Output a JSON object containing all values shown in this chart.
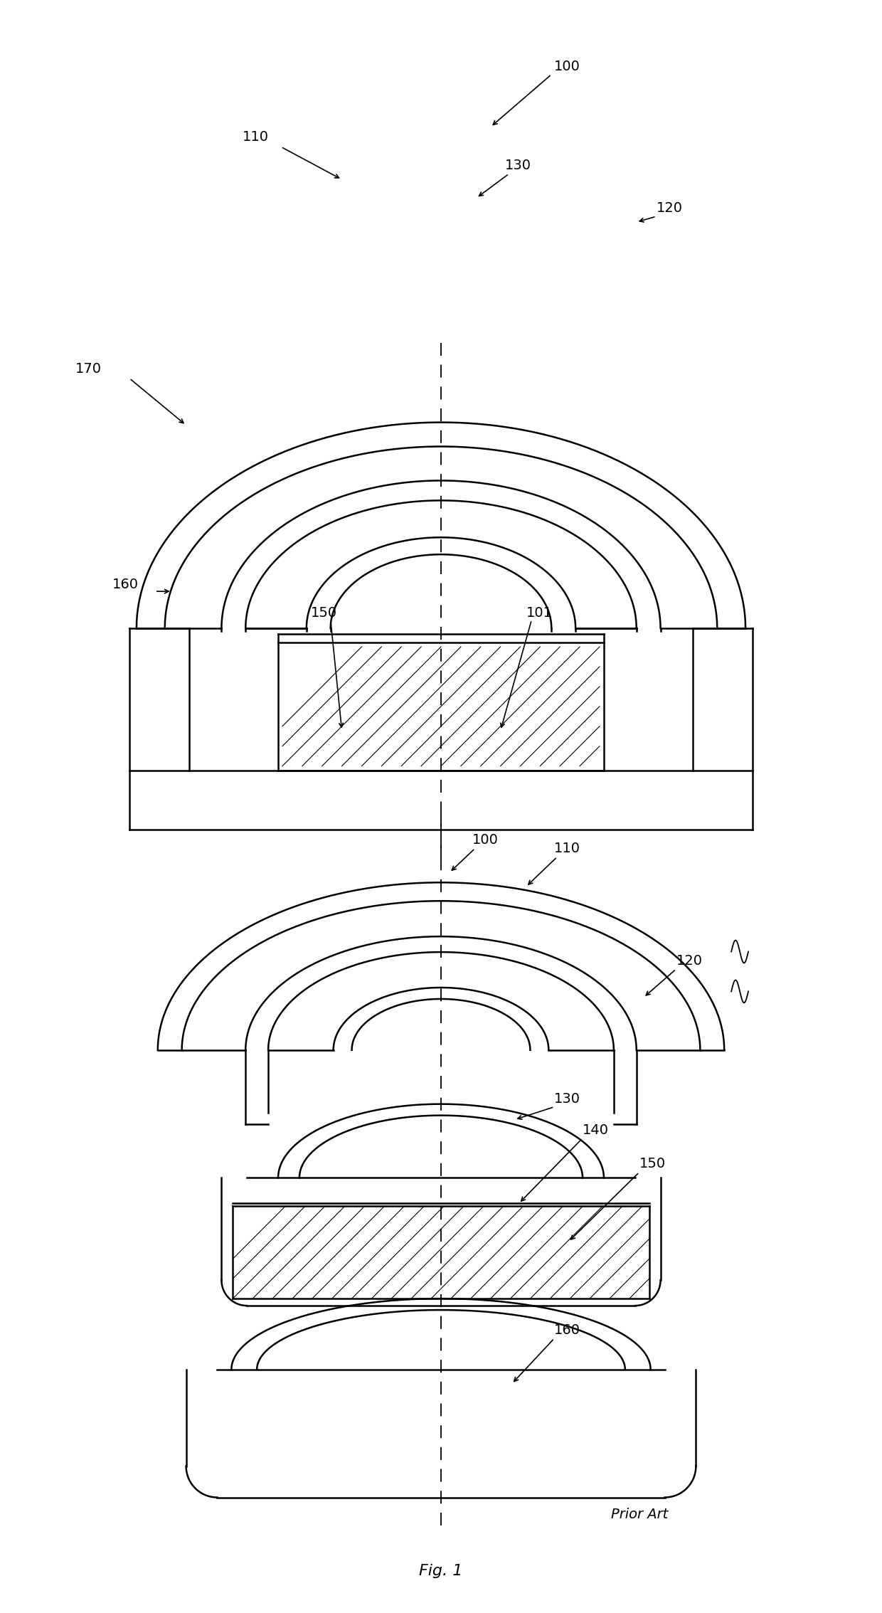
{
  "bg_color": "#ffffff",
  "line_color": "#000000",
  "fig_width": 12.4,
  "fig_height": 22.67,
  "dpi": 100,
  "fig_label": "Fig. 1",
  "prior_art_label": "Prior Art"
}
